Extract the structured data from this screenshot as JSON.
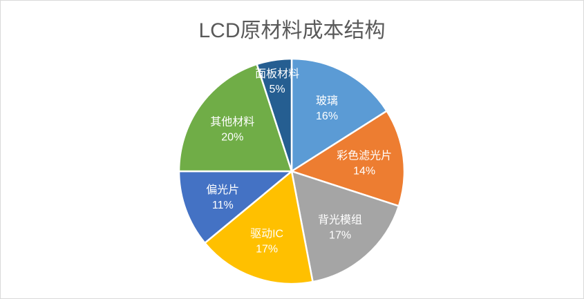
{
  "chart_data": {
    "type": "pie",
    "title": "LCD原材料成本结构",
    "start_angle": "12 o'clock",
    "direction": "clockwise",
    "slices": [
      {
        "label": "玻璃",
        "value": 16,
        "display": "16%",
        "color": "#5B9BD5"
      },
      {
        "label": "彩色滤光片",
        "value": 14,
        "display": "14%",
        "color": "#ED7D31"
      },
      {
        "label": "背光模组",
        "value": 17,
        "display": "17%",
        "color": "#A5A5A5"
      },
      {
        "label": "驱动IC",
        "value": 17,
        "display": "17%",
        "color": "#FFC000"
      },
      {
        "label": "偏光片",
        "value": 11,
        "display": "11%",
        "color": "#4472C4"
      },
      {
        "label": "其他材料",
        "value": 20,
        "display": "20%",
        "color": "#70AD47"
      },
      {
        "label": "面板材料",
        "value": 5,
        "display": "5%",
        "color": "#255E91"
      }
    ],
    "legend": "none"
  }
}
